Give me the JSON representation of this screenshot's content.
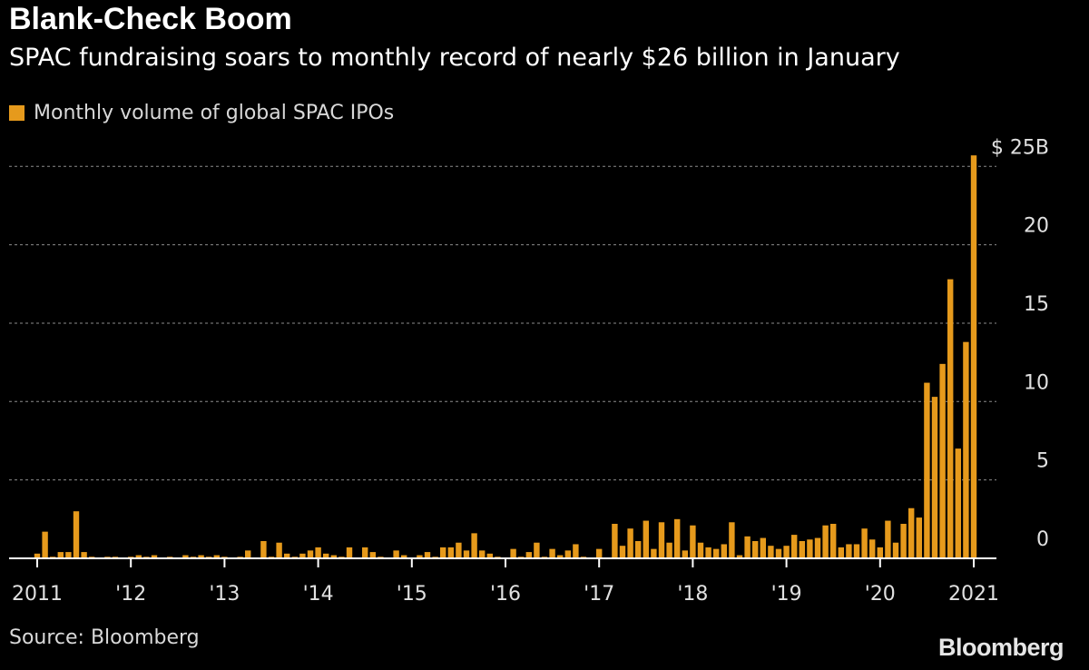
{
  "title": "Blank-Check Boom",
  "subtitle": "SPAC fundraising soars to monthly record of nearly $26 billion in January",
  "source": "Source: Bloomberg",
  "brand": "Bloomberg",
  "colors": {
    "bar": "#e69a1c",
    "background": "#000000",
    "grid": "#8c8c8c",
    "text": "#e0e0e0"
  },
  "chart_data": {
    "type": "bar",
    "title": "Blank-Check Boom",
    "subtitle": "SPAC fundraising soars to monthly record of nearly $26 billion in January",
    "series": [
      {
        "name": "Monthly volume of global SPAC IPOs",
        "start": "2011-01",
        "frequency": "monthly",
        "values": [
          0.3,
          1.7,
          0.1,
          0.4,
          0.4,
          3.0,
          0.4,
          0.1,
          0.0,
          0.1,
          0.1,
          0.0,
          0.1,
          0.2,
          0.1,
          0.2,
          0.0,
          0.1,
          0.0,
          0.2,
          0.1,
          0.2,
          0.1,
          0.2,
          0.1,
          0.0,
          0.1,
          0.5,
          0.0,
          1.1,
          0.1,
          1.0,
          0.3,
          0.1,
          0.3,
          0.5,
          0.7,
          0.3,
          0.2,
          0.1,
          0.7,
          0.0,
          0.7,
          0.4,
          0.1,
          0.0,
          0.5,
          0.2,
          0.0,
          0.2,
          0.4,
          0.1,
          0.7,
          0.7,
          1.0,
          0.5,
          1.6,
          0.5,
          0.3,
          0.1,
          0.0,
          0.6,
          0.1,
          0.4,
          1.0,
          0.1,
          0.6,
          0.2,
          0.5,
          0.9,
          0.1,
          0.0,
          0.6,
          0.0,
          2.2,
          0.8,
          1.9,
          1.1,
          2.4,
          0.6,
          2.3,
          1.0,
          2.5,
          0.5,
          2.1,
          1.0,
          0.7,
          0.6,
          0.9,
          2.3,
          0.2,
          1.4,
          1.1,
          1.3,
          0.8,
          0.6,
          0.8,
          1.5,
          1.1,
          1.2,
          1.3,
          2.1,
          2.2,
          0.7,
          0.9,
          0.9,
          1.9,
          1.2,
          0.7,
          2.4,
          1.0,
          2.2,
          3.2,
          2.6,
          11.2,
          10.3,
          12.4,
          17.8,
          7.0,
          13.8,
          25.7
        ]
      }
    ],
    "x_tick_labels": [
      "2011",
      "'12",
      "'13",
      "'14",
      "'15",
      "'16",
      "'17",
      "'18",
      "'19",
      "'20",
      "2021"
    ],
    "y_ticks": [
      0,
      5,
      10,
      15,
      20,
      25
    ],
    "y_tick_labels": [
      "0",
      "5",
      "10",
      "15",
      "20",
      "$ 25B"
    ],
    "ylim": [
      0,
      25.7
    ],
    "xlabel": "",
    "ylabel": "",
    "grid": true,
    "legend_position": "top-left"
  }
}
